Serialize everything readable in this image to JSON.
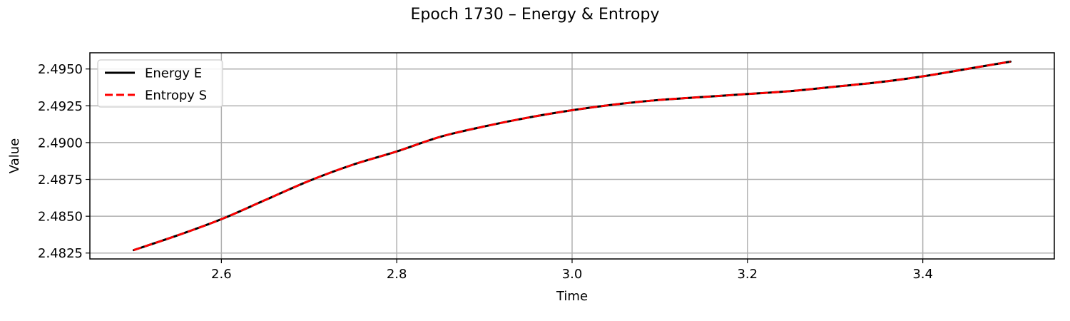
{
  "chart_data": {
    "type": "line",
    "title": "Epoch 1730 – Energy & Entropy",
    "xlabel": "Time",
    "ylabel": "Value",
    "xlim": [
      2.45,
      3.55
    ],
    "ylim": [
      2.4821,
      2.4961
    ],
    "xticks": [
      2.6,
      2.8,
      3.0,
      3.2,
      3.4
    ],
    "xtick_labels": [
      "2.6",
      "2.8",
      "3.0",
      "3.2",
      "3.4"
    ],
    "yticks": [
      2.4825,
      2.485,
      2.4875,
      2.49,
      2.4925,
      2.495
    ],
    "ytick_labels": [
      "2.4825",
      "2.4850",
      "2.4875",
      "2.4900",
      "2.4925",
      "2.4950"
    ],
    "grid": true,
    "legend_position": "upper-left",
    "x": [
      2.5,
      2.55,
      2.6,
      2.65,
      2.7,
      2.75,
      2.8,
      2.85,
      2.9,
      2.95,
      3.0,
      3.05,
      3.1,
      3.15,
      3.2,
      3.25,
      3.3,
      3.35,
      3.4,
      3.45,
      3.5
    ],
    "series": [
      {
        "name": "Energy E",
        "color": "#000000",
        "style": "solid",
        "values": [
          2.4827,
          2.4837,
          2.4848,
          2.4861,
          2.4874,
          2.4885,
          2.4894,
          2.4904,
          2.4911,
          2.4917,
          2.4922,
          2.4926,
          2.4929,
          2.4931,
          2.4933,
          2.4935,
          2.4938,
          2.4941,
          2.4945,
          2.495,
          2.4955
        ]
      },
      {
        "name": "Entropy S",
        "color": "#ff0000",
        "style": "dashed",
        "values": [
          2.4827,
          2.4837,
          2.4848,
          2.4861,
          2.4874,
          2.4885,
          2.4894,
          2.4904,
          2.4911,
          2.4917,
          2.4922,
          2.4926,
          2.4929,
          2.4931,
          2.4933,
          2.4935,
          2.4938,
          2.4941,
          2.4945,
          2.495,
          2.4955
        ]
      }
    ]
  }
}
